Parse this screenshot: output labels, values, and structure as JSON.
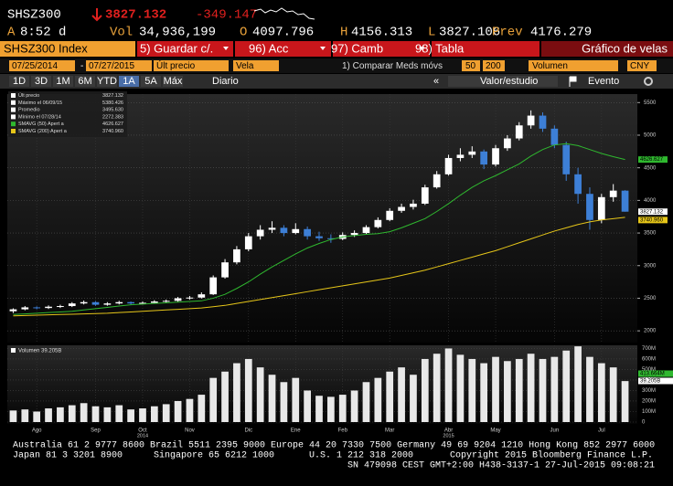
{
  "header": {
    "ticker": "SHSZ300",
    "last": "3827.132",
    "change": "-349.147",
    "quote": [
      {
        "label": "A",
        "value": "8:52 d"
      },
      {
        "label": "Vol",
        "value": "34,936,199"
      },
      {
        "label": "O",
        "value": "4097.796"
      },
      {
        "label": "H",
        "value": "4156.313"
      },
      {
        "label": "L",
        "value": "3827.106"
      },
      {
        "label": "Prev",
        "value": "4176.279"
      }
    ],
    "toolbar": [
      "SHSZ300 Index",
      "5) Guardar c/.",
      "96) Acc",
      "97) Camb",
      "98) Tabla",
      "Gráfico de velas"
    ],
    "controls": {
      "start": "07/25/2014",
      "sep": "-",
      "end": "07/27/2015",
      "field": "Últ precio",
      "style": "Vela",
      "compare": "1) Comparar Meds móvs",
      "ma1": "50",
      "ma2": "200",
      "lower": "Volumen",
      "currency": "CNY"
    },
    "periods": [
      "1D",
      "3D",
      "1M",
      "6M",
      "YTD",
      "1A",
      "5A",
      "Máx"
    ],
    "selected_period": 5,
    "frequency": "Diario",
    "back": "«",
    "study": "Valor/estudio",
    "event": "Evento"
  },
  "chart_data": {
    "type": "candlestick",
    "ylim": [
      1820,
      5630
    ],
    "yticks": [
      2000,
      2500,
      3000,
      3500,
      4000,
      4500,
      5000,
      5500
    ],
    "grid": true,
    "up_color": "#ffffff",
    "down_color": "#3d7fd6",
    "ohlc": [
      [
        2300,
        2345,
        2272.383,
        2330
      ],
      [
        2330,
        2380,
        2315,
        2360
      ],
      [
        2360,
        2375,
        2330,
        2350
      ],
      [
        2350,
        2390,
        2335,
        2370
      ],
      [
        2370,
        2400,
        2350,
        2380
      ],
      [
        2380,
        2440,
        2365,
        2420
      ],
      [
        2420,
        2465,
        2405,
        2440
      ],
      [
        2440,
        2455,
        2385,
        2400
      ],
      [
        2400,
        2440,
        2385,
        2420
      ],
      [
        2420,
        2460,
        2405,
        2440
      ],
      [
        2440,
        2450,
        2400,
        2420
      ],
      [
        2420,
        2450,
        2405,
        2430
      ],
      [
        2430,
        2470,
        2415,
        2450
      ],
      [
        2450,
        2480,
        2430,
        2460
      ],
      [
        2460,
        2520,
        2445,
        2500
      ],
      [
        2500,
        2535,
        2480,
        2510
      ],
      [
        2510,
        2590,
        2495,
        2560
      ],
      [
        2560,
        2850,
        2550,
        2820
      ],
      [
        2820,
        3100,
        2800,
        3050
      ],
      [
        3050,
        3300,
        3020,
        3250
      ],
      [
        3250,
        3500,
        3220,
        3450
      ],
      [
        3450,
        3620,
        3400,
        3550
      ],
      [
        3550,
        3680,
        3500,
        3580
      ],
      [
        3580,
        3620,
        3450,
        3500
      ],
      [
        3500,
        3650,
        3480,
        3560
      ],
      [
        3560,
        3600,
        3400,
        3450
      ],
      [
        3450,
        3520,
        3380,
        3420
      ],
      [
        3420,
        3480,
        3350,
        3410
      ],
      [
        3410,
        3510,
        3390,
        3470
      ],
      [
        3470,
        3540,
        3440,
        3500
      ],
      [
        3500,
        3620,
        3480,
        3590
      ],
      [
        3590,
        3740,
        3570,
        3700
      ],
      [
        3700,
        3880,
        3680,
        3840
      ],
      [
        3840,
        3950,
        3810,
        3900
      ],
      [
        3900,
        4010,
        3860,
        3950
      ],
      [
        3950,
        4240,
        3930,
        4200
      ],
      [
        4200,
        4450,
        4180,
        4400
      ],
      [
        4400,
        4700,
        4380,
        4650
      ],
      [
        4650,
        4800,
        4600,
        4700
      ],
      [
        4700,
        4830,
        4650,
        4750
      ],
      [
        4750,
        4780,
        4480,
        4550
      ],
      [
        4550,
        4850,
        4520,
        4800
      ],
      [
        4800,
        5000,
        4760,
        4950
      ],
      [
        4950,
        5200,
        4920,
        5150
      ],
      [
        5150,
        5380.426,
        5100,
        5300
      ],
      [
        5300,
        5350,
        5050,
        5100
      ],
      [
        5100,
        5150,
        4800,
        4850
      ],
      [
        4850,
        4900,
        4300,
        4400
      ],
      [
        4400,
        4500,
        3950,
        4100
      ],
      [
        4100,
        4200,
        3550,
        3700
      ],
      [
        3700,
        4100,
        3650,
        4050
      ],
      [
        4050,
        4250,
        3980,
        4150
      ],
      [
        4150,
        4156.313,
        3827.106,
        3827.132
      ]
    ],
    "series": [
      {
        "name": "SMAVG (50) Apert a",
        "color": "#2fb82f",
        "values": [
          2250,
          2260,
          2270,
          2280,
          2290,
          2300,
          2320,
          2340,
          2360,
          2380,
          2400,
          2410,
          2420,
          2430,
          2440,
          2450,
          2460,
          2500,
          2560,
          2650,
          2750,
          2870,
          2980,
          3080,
          3180,
          3270,
          3340,
          3400,
          3440,
          3460,
          3480,
          3490,
          3520,
          3580,
          3650,
          3720,
          3830,
          3950,
          4080,
          4200,
          4300,
          4380,
          4470,
          4560,
          4680,
          4780,
          4850,
          4870,
          4840,
          4780,
          4720,
          4670,
          4626.627
        ]
      },
      {
        "name": "SMAVG (200) Apert a",
        "color": "#e6c619",
        "values": [
          2230,
          2235,
          2240,
          2245,
          2250,
          2255,
          2260,
          2265,
          2270,
          2280,
          2290,
          2300,
          2310,
          2320,
          2330,
          2340,
          2350,
          2370,
          2390,
          2420,
          2450,
          2480,
          2510,
          2540,
          2570,
          2600,
          2630,
          2660,
          2690,
          2720,
          2750,
          2780,
          2810,
          2850,
          2890,
          2930,
          2980,
          3030,
          3080,
          3130,
          3180,
          3230,
          3290,
          3350,
          3410,
          3470,
          3530,
          3580,
          3630,
          3670,
          3700,
          3720,
          3740.96
        ]
      }
    ],
    "legend": [
      {
        "label": "Últ precio",
        "value": "3827.132"
      },
      {
        "label": "Máximo el 06/09/15",
        "value": "5380.426"
      },
      {
        "label": "Promedio",
        "value": "3495.630"
      },
      {
        "label": "Mínimo el 07/28/14",
        "value": "2272.383"
      },
      {
        "label": "SMAVG (50) Apert a",
        "value": "4626.627"
      },
      {
        "label": "SMAVG (200) Apert a",
        "value": "3740.960"
      }
    ],
    "xticks": [
      {
        "value": 2,
        "label": "Ago"
      },
      {
        "value": 7,
        "label": "Sep"
      },
      {
        "value": 11,
        "label": "Oct"
      },
      {
        "value": 15,
        "label": "Nov"
      },
      {
        "value": 20,
        "label": "Dic"
      },
      {
        "value": 24,
        "label": "Ene"
      },
      {
        "value": 28,
        "label": "Feb"
      },
      {
        "value": 32,
        "label": "Mar"
      },
      {
        "value": 37,
        "label": "Abr"
      },
      {
        "value": 41,
        "label": "May"
      },
      {
        "value": 46,
        "label": "Jun"
      },
      {
        "value": 50,
        "label": "Jul"
      }
    ],
    "year_labels": [
      {
        "value": 11,
        "label": "2014"
      },
      {
        "value": 37,
        "label": "2015"
      }
    ],
    "volume": {
      "label": "Volumen 39.205B",
      "color": "#e8e8e8",
      "ylim": [
        0,
        730
      ],
      "yticks": [
        0,
        {
          "value": 100,
          "label": "100M"
        },
        {
          "value": 200,
          "label": "200M"
        },
        {
          "value": 300,
          "label": "300M"
        },
        {
          "value": 400,
          "label": "400M"
        },
        {
          "value": 500,
          "label": "500M"
        },
        {
          "value": 600,
          "label": "600M"
        },
        {
          "value": 700,
          "label": "700M"
        }
      ],
      "values": [
        110,
        120,
        100,
        130,
        140,
        160,
        180,
        150,
        140,
        160,
        120,
        130,
        150,
        170,
        200,
        220,
        260,
        420,
        480,
        560,
        600,
        520,
        450,
        380,
        420,
        300,
        250,
        240,
        260,
        300,
        380,
        420,
        480,
        520,
        450,
        600,
        650,
        700,
        640,
        600,
        560,
        620,
        580,
        600,
        650,
        600,
        620,
        680,
        720,
        620,
        560,
        520,
        390
      ],
      "tags": [
        "413.664M",
        "39.205B"
      ]
    }
  },
  "footer": [
    "Australia 61 2 9777 8600 Brazil 5511 2395 9000 Europe 44 20 7330 7500 Germany 49 69 9204 1210 Hong Kong 852 2977 6000",
    "Japan 81 3 3201 8900",
    "Singapore 65 6212 1000",
    "U.S. 1 212 318 2000",
    "Copyright 2015 Bloomberg Finance L.P.",
    "SN 479098 CEST GMT+2:00 H438-3137-1 27-Jul-2015 09:08:21"
  ]
}
